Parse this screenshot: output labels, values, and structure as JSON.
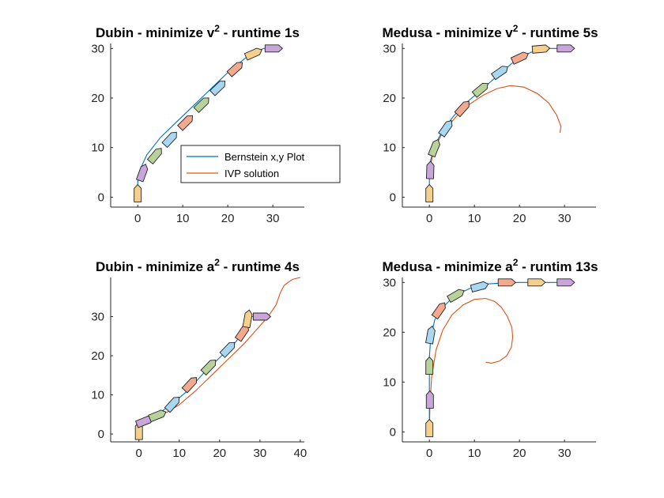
{
  "colors": {
    "bernstein": "#0072bd",
    "ivp": "#d95319",
    "axis": "#262626",
    "vehicle_palette": [
      "#f5cf8e",
      "#c8a6d9",
      "#b7d39b",
      "#a9d6f0",
      "#f2a98e",
      "#b7d39b",
      "#a9d6f0",
      "#f2a98e",
      "#f5cf8e",
      "#c8a6d9",
      "#b7d39b"
    ]
  },
  "legend": {
    "entries": [
      {
        "label": "Bernstein x,y Plot",
        "color": "#0072bd"
      },
      {
        "label": "IVP solution",
        "color": "#d95319"
      }
    ],
    "placement": "inside-lower-right of top-left subplot"
  },
  "chart_data": [
    {
      "type": "line",
      "title": "Dubin - minimize v",
      "title_sup": "2",
      "title_suffix": " - runtime 1s",
      "xlim": [
        -6,
        37
      ],
      "ylim": [
        -2,
        31
      ],
      "xticks": [
        0,
        10,
        20,
        30
      ],
      "yticks": [
        0,
        10,
        20,
        30
      ],
      "bernstein": {
        "x": [
          0,
          0,
          0.5,
          2,
          5,
          9,
          13,
          17,
          21,
          25,
          28,
          31
        ],
        "y": [
          0,
          3,
          5.5,
          8.5,
          12,
          15.5,
          19,
          22.5,
          26,
          28.8,
          30,
          30
        ]
      },
      "ivp": {
        "x": [],
        "y": []
      },
      "vehicles": [
        {
          "x": 0,
          "y": 0.8,
          "theta": 90
        },
        {
          "x": 1.1,
          "y": 5.0,
          "theta": 70
        },
        {
          "x": 4.0,
          "y": 8.5,
          "theta": 50
        },
        {
          "x": 7.3,
          "y": 11.8,
          "theta": 47
        },
        {
          "x": 10.8,
          "y": 15.2,
          "theta": 45
        },
        {
          "x": 14.4,
          "y": 18.8,
          "theta": 44
        },
        {
          "x": 18.0,
          "y": 22.2,
          "theta": 44
        },
        {
          "x": 21.8,
          "y": 26.0,
          "theta": 42
        },
        {
          "x": 25.8,
          "y": 29.0,
          "theta": 24
        },
        {
          "x": 30.2,
          "y": 30.0,
          "theta": 0
        }
      ]
    },
    {
      "type": "line",
      "title": "Medusa - minimize v",
      "title_sup": "2",
      "title_suffix": " - runtime 5s",
      "xlim": [
        -6,
        37
      ],
      "ylim": [
        -2,
        31
      ],
      "xticks": [
        0,
        10,
        20,
        30
      ],
      "yticks": [
        0,
        10,
        20,
        30
      ],
      "bernstein": {
        "x": [
          0,
          0,
          0.3,
          1.2,
          3,
          5.5,
          8.5,
          12,
          15.5,
          19,
          22.5,
          26,
          31
        ],
        "y": [
          0,
          4,
          7.5,
          10.5,
          13.5,
          16.5,
          19.3,
          22,
          24.8,
          27.5,
          29.2,
          30,
          30
        ]
      },
      "ivp": {
        "x": [
          0,
          1,
          3,
          6,
          9,
          12,
          15,
          18,
          21,
          24,
          26.5,
          28.3,
          29.2,
          29
        ],
        "y": [
          5.5,
          9.5,
          13.2,
          16.3,
          18.8,
          20.6,
          21.9,
          22.5,
          22.2,
          20.9,
          19,
          16.5,
          14.3,
          13
        ]
      },
      "vehicles": [
        {
          "x": 0,
          "y": 0.8,
          "theta": 90
        },
        {
          "x": 0.2,
          "y": 5.5,
          "theta": 88
        },
        {
          "x": 1.2,
          "y": 10.0,
          "theta": 68
        },
        {
          "x": 3.8,
          "y": 14.0,
          "theta": 55
        },
        {
          "x": 7.5,
          "y": 18.0,
          "theta": 48
        },
        {
          "x": 11.5,
          "y": 21.8,
          "theta": 40
        },
        {
          "x": 15.8,
          "y": 25.3,
          "theta": 35
        },
        {
          "x": 20.2,
          "y": 28.2,
          "theta": 25
        },
        {
          "x": 24.8,
          "y": 29.9,
          "theta": 5
        },
        {
          "x": 30.3,
          "y": 30.0,
          "theta": 0
        }
      ]
    },
    {
      "type": "line",
      "title": "Dubin - minimize a",
      "title_sup": "2",
      "title_suffix": " - runtime 4s",
      "xlim": [
        -7,
        41
      ],
      "ylim": [
        -2,
        40
      ],
      "xticks": [
        0,
        10,
        20,
        30,
        40
      ],
      "yticks": [
        0,
        10,
        20,
        30
      ],
      "bernstein": {
        "x": [
          0,
          0,
          1.5,
          4.5,
          8,
          12,
          16,
          20,
          24,
          27,
          28,
          32
        ],
        "y": [
          0,
          2.7,
          4,
          5,
          7.5,
          11,
          15.5,
          19.5,
          23.5,
          28,
          30,
          30
        ]
      },
      "ivp": {
        "x": [
          5,
          7,
          10,
          14,
          18,
          22,
          26,
          29,
          32,
          34,
          35,
          36,
          38,
          40
        ],
        "y": [
          5,
          5.6,
          7.5,
          11,
          15,
          19,
          23,
          26.5,
          30,
          33,
          36,
          38,
          39.5,
          40
        ]
      },
      "vehicles": [
        {
          "x": 0,
          "y": 0.8,
          "theta": 90
        },
        {
          "x": 1.5,
          "y": 3.3,
          "theta": 22
        },
        {
          "x": 4.7,
          "y": 4.8,
          "theta": 22
        },
        {
          "x": 8.5,
          "y": 7.8,
          "theta": 48
        },
        {
          "x": 12.8,
          "y": 12.8,
          "theta": 47
        },
        {
          "x": 17.5,
          "y": 17.3,
          "theta": 46
        },
        {
          "x": 22.2,
          "y": 21.8,
          "theta": 46
        },
        {
          "x": 25.8,
          "y": 26.0,
          "theta": 56
        },
        {
          "x": 27.0,
          "y": 29.5,
          "theta": 80
        },
        {
          "x": 30.5,
          "y": 30.0,
          "theta": 0
        }
      ]
    },
    {
      "type": "line",
      "title": "Medusa - minimize a",
      "title_sup": "2",
      "title_suffix": " - runtim 13s",
      "xlim": [
        -6,
        37
      ],
      "ylim": [
        -2,
        31
      ],
      "xticks": [
        0,
        10,
        20,
        30
      ],
      "yticks": [
        0,
        10,
        20,
        30
      ],
      "bernstein": {
        "x": [
          0,
          0,
          0,
          0,
          0.3,
          1.2,
          3,
          5.5,
          9,
          13,
          18,
          24,
          31
        ],
        "y": [
          0,
          5,
          10,
          15,
          19,
          22.5,
          25,
          27.3,
          28.8,
          29.7,
          30,
          30,
          30
        ]
      },
      "ivp": {
        "x": [
          0,
          0.1,
          0.5,
          1.5,
          3,
          5,
          7.5,
          10,
          12.5,
          14.5,
          16,
          17.3,
          18.3,
          18.5,
          18.2,
          17.2,
          15.5,
          13.8,
          12.5
        ],
        "y": [
          0,
          5,
          11,
          16.5,
          20.5,
          23.5,
          25.5,
          26.6,
          26.8,
          26.2,
          25,
          23.2,
          21,
          19,
          17,
          15.3,
          14.2,
          13.8,
          14
        ]
      },
      "vehicles": [
        {
          "x": 0,
          "y": 0.8,
          "theta": 90
        },
        {
          "x": 0.1,
          "y": 6.5,
          "theta": 90
        },
        {
          "x": 0,
          "y": 13.3,
          "theta": 90
        },
        {
          "x": 0.3,
          "y": 19.5,
          "theta": 80
        },
        {
          "x": 2.3,
          "y": 24.5,
          "theta": 55
        },
        {
          "x": 6.0,
          "y": 27.5,
          "theta": 30
        },
        {
          "x": 11.2,
          "y": 29.2,
          "theta": 15
        },
        {
          "x": 17.2,
          "y": 30.0,
          "theta": 0
        },
        {
          "x": 23.8,
          "y": 30.0,
          "theta": 0
        },
        {
          "x": 30.3,
          "y": 30.0,
          "theta": 0
        }
      ]
    }
  ]
}
